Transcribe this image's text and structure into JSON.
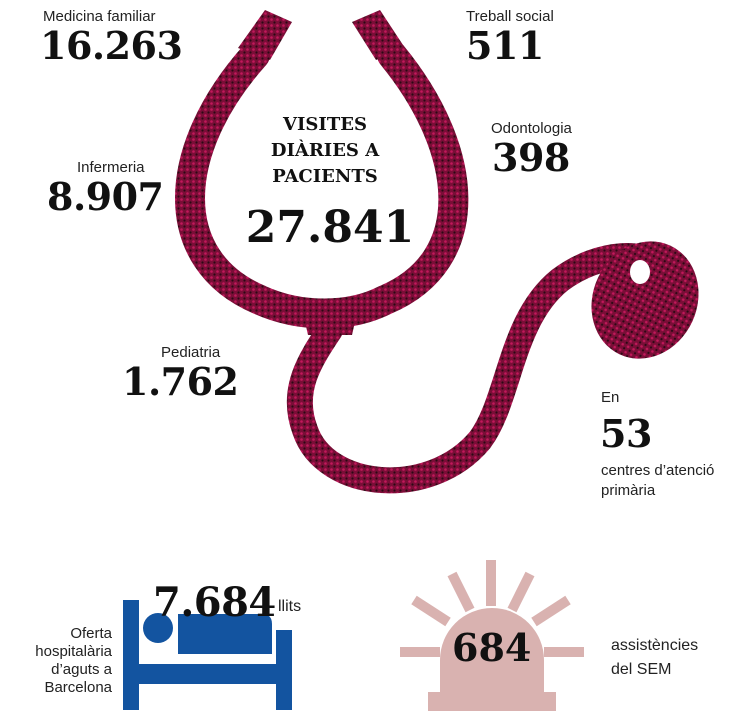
{
  "center": {
    "title": "VISITES DIÀRIES A PACIENTS",
    "value": "27.841"
  },
  "stats": {
    "medicina": {
      "label": "Medicina familiar",
      "value": "16.263"
    },
    "treball": {
      "label": "Treball social",
      "value": "511"
    },
    "odontologia": {
      "label": "Odontologia",
      "value": "398"
    },
    "infermeria": {
      "label": "Infermeria",
      "value": "8.907"
    },
    "pediatria": {
      "label": "Pediatria",
      "value": "1.762"
    },
    "centres": {
      "prefix": "En",
      "value": "53",
      "label_line1": "centres d’atenció",
      "label_line2": "primària"
    }
  },
  "hospital": {
    "value": "7.684",
    "unit": "llits",
    "label_lines": [
      "Oferta",
      "hospitalària",
      "d’aguts a",
      "Barcelona"
    ]
  },
  "sem": {
    "value": "684",
    "label_line1": "assistències",
    "label_line2": "del SEM"
  },
  "colors": {
    "stethoscope": "#7a0e37",
    "bed": "#1354a0",
    "siren": "#d9b2b0"
  },
  "icons": {
    "stethoscope": "stethoscope-icon",
    "bed": "bed-icon",
    "siren": "siren-icon"
  }
}
